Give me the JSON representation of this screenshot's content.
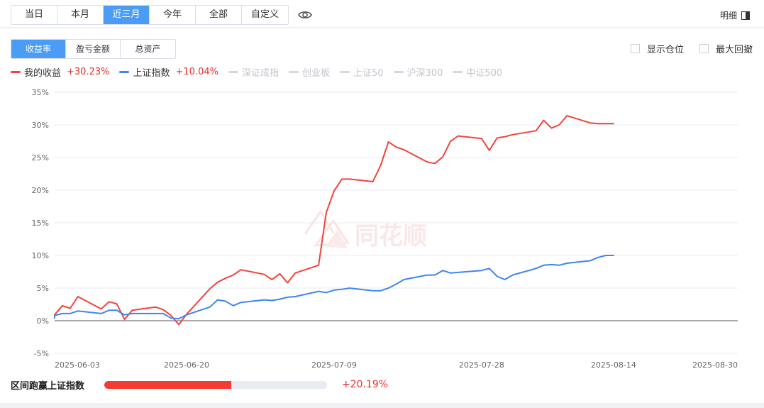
{
  "range_tabs": [
    {
      "label": "当日",
      "active": false
    },
    {
      "label": "本月",
      "active": false
    },
    {
      "label": "近三月",
      "active": true
    },
    {
      "label": "今年",
      "active": false
    },
    {
      "label": "全部",
      "active": false
    },
    {
      "label": "自定义",
      "active": false
    }
  ],
  "detail_label": "明细",
  "metric_tabs": [
    {
      "label": "收益率",
      "active": true
    },
    {
      "label": "盈亏金额",
      "active": false
    },
    {
      "label": "总资产",
      "active": false
    }
  ],
  "options": {
    "show_position": "显示仓位",
    "max_drawdown": "最大回撤"
  },
  "legend": [
    {
      "name": "我的收益",
      "value": "+30.23%",
      "color": "#f0443c",
      "active": true
    },
    {
      "name": "上证指数",
      "value": "+10.04%",
      "color": "#3f86ee",
      "active": true
    },
    {
      "name": "深证成指",
      "value": "",
      "color": "#d5d8de",
      "active": false
    },
    {
      "name": "创业板",
      "value": "",
      "color": "#d5d8de",
      "active": false
    },
    {
      "name": "上证50",
      "value": "",
      "color": "#d5d8de",
      "active": false
    },
    {
      "name": "沪深300",
      "value": "",
      "color": "#d5d8de",
      "active": false
    },
    {
      "name": "中证500",
      "value": "",
      "color": "#d5d8de",
      "active": false
    }
  ],
  "watermark": "同花顺",
  "outperform": {
    "label": "区间跑赢上证指数",
    "value": "+20.19%",
    "fraction": 0.57
  },
  "chart_data": {
    "type": "line",
    "ylim": [
      -5,
      35
    ],
    "yticks": [
      -5,
      0,
      5,
      10,
      15,
      20,
      25,
      30,
      35
    ],
    "ytick_labels": [
      "-5%",
      "0%",
      "5%",
      "10%",
      "15%",
      "20%",
      "25%",
      "30%",
      "35%"
    ],
    "x_range": [
      "2025-06-03",
      "2025-08-30"
    ],
    "x_ticks": [
      "2025-06-03",
      "2025-06-20",
      "2025-07-09",
      "2025-07-28",
      "2025-08-14",
      "2025-08-30"
    ],
    "grid": true,
    "series": [
      {
        "name": "我的收益",
        "color": "#f0443c",
        "x": [
          "2025-05-30",
          "2025-06-03",
          "2025-06-04",
          "2025-06-05",
          "2025-06-06",
          "2025-06-09",
          "2025-06-10",
          "2025-06-11",
          "2025-06-12",
          "2025-06-13",
          "2025-06-16",
          "2025-06-17",
          "2025-06-18",
          "2025-06-19",
          "2025-06-20",
          "2025-06-23",
          "2025-06-24",
          "2025-06-25",
          "2025-06-26",
          "2025-06-27",
          "2025-06-30",
          "2025-07-01",
          "2025-07-02",
          "2025-07-03",
          "2025-07-04",
          "2025-07-07",
          "2025-07-08",
          "2025-07-09",
          "2025-07-10",
          "2025-07-11",
          "2025-07-14",
          "2025-07-15",
          "2025-07-16",
          "2025-07-17",
          "2025-07-18",
          "2025-07-21",
          "2025-07-22",
          "2025-07-23",
          "2025-07-24",
          "2025-07-25",
          "2025-07-28",
          "2025-07-29",
          "2025-07-30",
          "2025-07-31",
          "2025-08-01",
          "2025-08-04",
          "2025-08-05",
          "2025-08-06",
          "2025-08-07",
          "2025-08-08",
          "2025-08-11",
          "2025-08-12",
          "2025-08-13",
          "2025-08-14"
        ],
        "values": [
          0.4,
          0.9,
          2.3,
          1.9,
          3.7,
          1.8,
          2.9,
          2.6,
          0.2,
          1.6,
          2.1,
          1.7,
          0.8,
          -0.6,
          1.0,
          4.9,
          5.9,
          6.5,
          7.0,
          7.8,
          7.1,
          6.3,
          7.2,
          5.8,
          7.3,
          8.5,
          16.6,
          19.9,
          21.7,
          21.7,
          21.3,
          23.8,
          27.4,
          26.6,
          26.2,
          24.3,
          24.1,
          25.1,
          27.5,
          28.3,
          27.9,
          26.1,
          28.0,
          28.2,
          28.5,
          29.1,
          30.7,
          29.5,
          30.0,
          31.4,
          30.3,
          30.2,
          30.2,
          30.2
        ]
      },
      {
        "name": "上证指数",
        "color": "#3f86ee",
        "x": [
          "2025-05-30",
          "2025-06-03",
          "2025-06-04",
          "2025-06-05",
          "2025-06-06",
          "2025-06-09",
          "2025-06-10",
          "2025-06-11",
          "2025-06-12",
          "2025-06-13",
          "2025-06-16",
          "2025-06-17",
          "2025-06-18",
          "2025-06-19",
          "2025-06-20",
          "2025-06-23",
          "2025-06-24",
          "2025-06-25",
          "2025-06-26",
          "2025-06-27",
          "2025-06-30",
          "2025-07-01",
          "2025-07-02",
          "2025-07-03",
          "2025-07-04",
          "2025-07-07",
          "2025-07-08",
          "2025-07-09",
          "2025-07-10",
          "2025-07-11",
          "2025-07-14",
          "2025-07-15",
          "2025-07-16",
          "2025-07-17",
          "2025-07-18",
          "2025-07-21",
          "2025-07-22",
          "2025-07-23",
          "2025-07-24",
          "2025-07-25",
          "2025-07-28",
          "2025-07-29",
          "2025-07-30",
          "2025-07-31",
          "2025-08-01",
          "2025-08-04",
          "2025-08-05",
          "2025-08-06",
          "2025-08-07",
          "2025-08-08",
          "2025-08-11",
          "2025-08-12",
          "2025-08-13",
          "2025-08-14"
        ],
        "values": [
          0.4,
          0.8,
          1.1,
          1.1,
          1.5,
          1.1,
          1.6,
          1.6,
          0.9,
          1.1,
          1.1,
          1.1,
          0.4,
          0.3,
          0.9,
          2.1,
          3.2,
          3.0,
          2.3,
          2.8,
          3.2,
          3.1,
          3.3,
          3.6,
          3.7,
          4.5,
          4.3,
          4.7,
          4.8,
          5.0,
          4.6,
          4.6,
          5.0,
          5.6,
          6.3,
          7.0,
          7.0,
          7.7,
          7.3,
          7.4,
          7.7,
          8.0,
          6.8,
          6.3,
          7.0,
          8.0,
          8.5,
          8.6,
          8.5,
          8.8,
          9.2,
          9.7,
          10.0,
          10.0
        ]
      }
    ]
  }
}
